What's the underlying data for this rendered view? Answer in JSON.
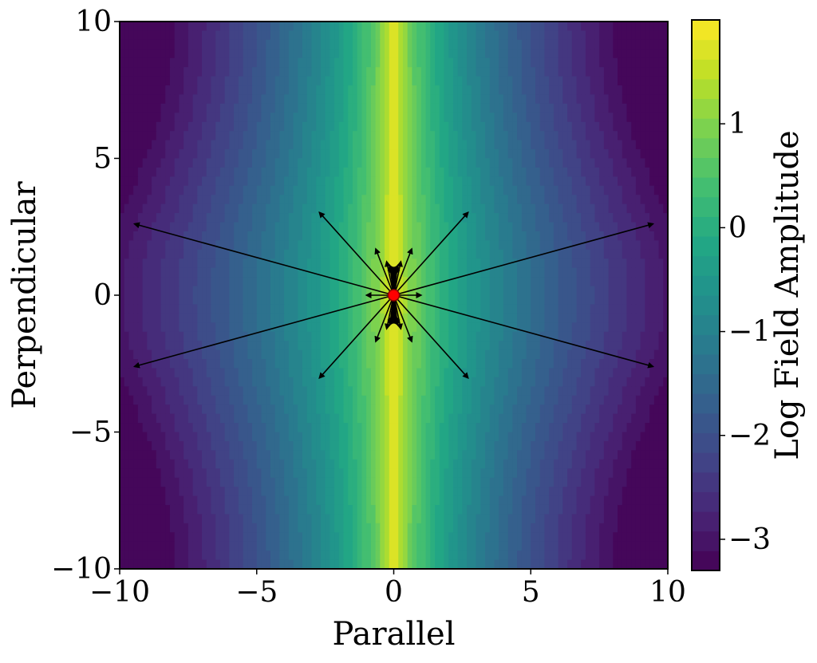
{
  "chart_data": {
    "type": "heatmap",
    "subtype": "filled-contour with field arrows",
    "xlabel": "Parallel",
    "ylabel": "Perpendicular",
    "xlim": [
      -10,
      10
    ],
    "ylim": [
      -10,
      10
    ],
    "xticks": [
      -10,
      -5,
      0,
      5,
      10
    ],
    "yticks": [
      -10,
      -5,
      0,
      5,
      10
    ],
    "xtick_labels": [
      "−10",
      "−5",
      "0",
      "5",
      "10"
    ],
    "ytick_labels": [
      "−10",
      "−5",
      "0",
      "5",
      "10"
    ],
    "grid": false,
    "colormap": "viridis",
    "colorbar": {
      "label": "Log Field Amplitude",
      "range": [
        -3.3,
        2.0
      ],
      "levels": 28,
      "ticks": [
        -3,
        -2,
        -1,
        0,
        1
      ],
      "tick_labels": [
        "−3",
        "−2",
        "−1",
        "0",
        "1"
      ],
      "position": "right"
    },
    "source_point": {
      "x": 0,
      "y": 0,
      "color": "#ff0000"
    },
    "field_arrows": {
      "origin": [
        0,
        0
      ],
      "count": 40,
      "concentration": "along perpendicular axis",
      "max_length": 10
    },
    "field_model": {
      "description": "amplitude highest along x=0, decaying with |parallel|, slightly wider near perpendicular=0",
      "center_max": 1.9,
      "edge_min": -3.3
    }
  },
  "colors": {
    "viridis_stops": [
      "#440154",
      "#482475",
      "#414487",
      "#355f8d",
      "#2a788e",
      "#21918c",
      "#22a884",
      "#44bf70",
      "#7ad151",
      "#bddf26",
      "#fde725"
    ],
    "arrow": "#000000",
    "source_fill": "#ff0000",
    "source_edge": "#8b0000",
    "frame": "#000000"
  }
}
